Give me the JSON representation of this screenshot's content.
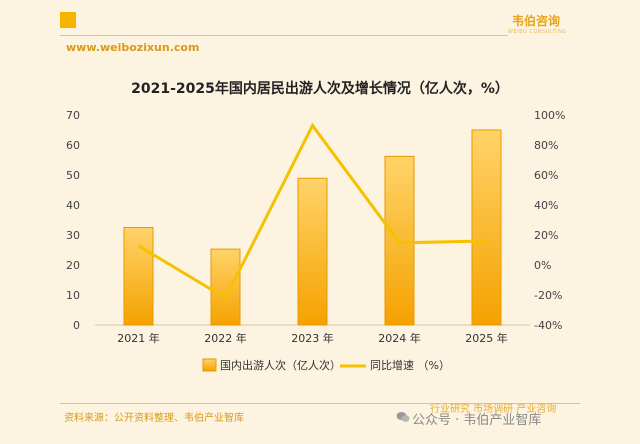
{
  "header": {
    "brand": "韦伯咨询",
    "brand_sub": "WEIBO CONSULTING",
    "url": "www.weibozixun.com"
  },
  "chart_data": {
    "type": "bar",
    "title": "2021-2025年国内居民出游人次及增长情况（亿人次，%）",
    "categories": [
      "2021 年",
      "2022 年",
      "2023 年",
      "2024 年",
      "2025 年"
    ],
    "series": [
      {
        "name": "国内出游人次（亿人次）",
        "type": "bar",
        "axis": "left",
        "values": [
          32.5,
          25.3,
          48.9,
          56.2,
          65.0
        ]
      },
      {
        "name": "同比增速 （%）",
        "type": "line",
        "axis": "right",
        "values": [
          12.8,
          -22.0,
          93.0,
          14.8,
          16.0
        ]
      }
    ],
    "left_axis": {
      "min": 0,
      "max": 70,
      "ticks": [
        0,
        10,
        20,
        30,
        40,
        50,
        60,
        70
      ]
    },
    "right_axis": {
      "min": -40,
      "max": 100,
      "ticks": [
        "-40%",
        "-20%",
        "0%",
        "20%",
        "40%",
        "60%",
        "80%",
        "100%"
      ]
    },
    "legend_position": "bottom",
    "grid": false,
    "colors": {
      "bar_top": "#ffd369",
      "bar_bottom": "#f5a200",
      "line": "#f5c100"
    }
  },
  "footer": {
    "source": "资料来源：公开资料整理、韦伯产业智库",
    "watermark_tags": "行业研究   市场调研   产业咨询",
    "watermark_account": "公众号 · 韦伯产业智库"
  }
}
